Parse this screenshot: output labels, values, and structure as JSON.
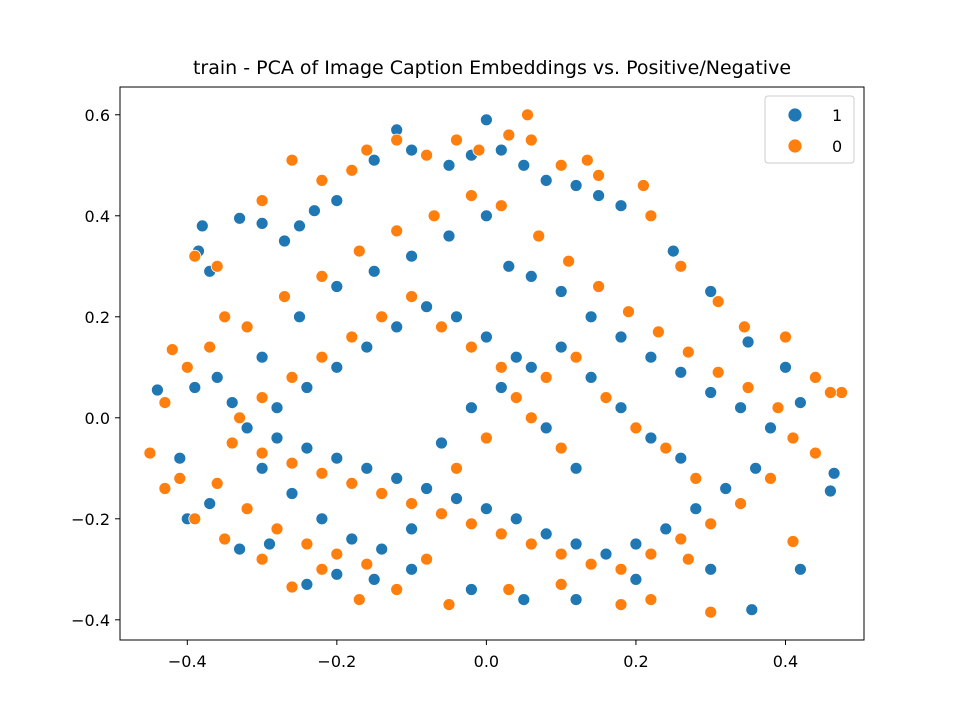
{
  "chart_data": {
    "type": "scatter",
    "title": "train - PCA of Image Caption Embeddings vs. Positive/Negative",
    "xlabel": "",
    "ylabel": "",
    "xlim": [
      -0.49,
      0.505
    ],
    "ylim": [
      -0.44,
      0.655
    ],
    "xticks": [
      -0.4,
      -0.2,
      0.0,
      0.2,
      0.4
    ],
    "xtick_labels": [
      "−0.4",
      "−0.2",
      "0.0",
      "0.2",
      "0.4"
    ],
    "yticks": [
      -0.4,
      -0.2,
      0.0,
      0.2,
      0.4,
      0.6
    ],
    "ytick_labels": [
      "−0.4",
      "−0.2",
      "0.0",
      "0.2",
      "0.4",
      "0.6"
    ],
    "grid": false,
    "legend_position": "top-right",
    "colors": {
      "1": "#1f77b4",
      "0": "#ff7f0e"
    },
    "series": [
      {
        "name": "1",
        "color": "#1f77b4",
        "points": [
          [
            -0.44,
            0.055
          ],
          [
            -0.4,
            -0.2
          ],
          [
            -0.38,
            0.38
          ],
          [
            -0.385,
            0.33
          ],
          [
            -0.37,
            0.29
          ],
          [
            -0.33,
            0.395
          ],
          [
            -0.3,
            0.385
          ],
          [
            -0.27,
            0.35
          ],
          [
            -0.25,
            0.38
          ],
          [
            -0.23,
            0.41
          ],
          [
            -0.2,
            0.43
          ],
          [
            -0.15,
            0.51
          ],
          [
            -0.12,
            0.57
          ],
          [
            -0.1,
            0.53
          ],
          [
            -0.05,
            0.5
          ],
          [
            -0.02,
            0.52
          ],
          [
            0.0,
            0.59
          ],
          [
            0.02,
            0.53
          ],
          [
            0.05,
            0.5
          ],
          [
            0.08,
            0.47
          ],
          [
            0.12,
            0.46
          ],
          [
            0.15,
            0.44
          ],
          [
            0.18,
            0.42
          ],
          [
            0.25,
            0.33
          ],
          [
            0.3,
            0.25
          ],
          [
            0.35,
            0.15
          ],
          [
            0.4,
            0.1
          ],
          [
            0.42,
            0.03
          ],
          [
            0.44,
            -0.07
          ],
          [
            0.465,
            -0.11
          ],
          [
            0.46,
            -0.145
          ],
          [
            0.42,
            -0.3
          ],
          [
            0.355,
            -0.38
          ],
          [
            0.3,
            -0.3
          ],
          [
            0.2,
            -0.32
          ],
          [
            0.12,
            -0.36
          ],
          [
            0.05,
            -0.36
          ],
          [
            -0.02,
            -0.34
          ],
          [
            -0.1,
            -0.3
          ],
          [
            -0.15,
            -0.32
          ],
          [
            -0.2,
            -0.31
          ],
          [
            -0.24,
            -0.33
          ],
          [
            -0.29,
            -0.25
          ],
          [
            -0.33,
            -0.26
          ],
          [
            -0.37,
            -0.17
          ],
          [
            -0.41,
            -0.08
          ],
          [
            -0.39,
            0.06
          ],
          [
            -0.36,
            0.08
          ],
          [
            -0.3,
            0.12
          ],
          [
            -0.25,
            0.2
          ],
          [
            -0.2,
            0.26
          ],
          [
            -0.15,
            0.29
          ],
          [
            -0.1,
            0.32
          ],
          [
            -0.05,
            0.36
          ],
          [
            0.0,
            0.4
          ],
          [
            0.03,
            0.3
          ],
          [
            0.06,
            0.28
          ],
          [
            0.1,
            0.25
          ],
          [
            0.14,
            0.2
          ],
          [
            0.18,
            0.16
          ],
          [
            0.22,
            0.12
          ],
          [
            0.26,
            0.09
          ],
          [
            0.3,
            0.05
          ],
          [
            0.34,
            0.02
          ],
          [
            0.38,
            -0.02
          ],
          [
            0.36,
            -0.1
          ],
          [
            0.32,
            -0.14
          ],
          [
            0.28,
            -0.18
          ],
          [
            0.24,
            -0.22
          ],
          [
            0.2,
            -0.25
          ],
          [
            0.16,
            -0.27
          ],
          [
            0.12,
            -0.25
          ],
          [
            0.08,
            -0.23
          ],
          [
            0.04,
            -0.2
          ],
          [
            0.0,
            -0.18
          ],
          [
            -0.04,
            -0.16
          ],
          [
            -0.08,
            -0.14
          ],
          [
            -0.12,
            -0.12
          ],
          [
            -0.16,
            -0.1
          ],
          [
            -0.2,
            -0.08
          ],
          [
            -0.24,
            -0.06
          ],
          [
            -0.28,
            -0.04
          ],
          [
            -0.32,
            -0.02
          ],
          [
            -0.34,
            0.03
          ],
          [
            -0.3,
            -0.1
          ],
          [
            -0.26,
            -0.15
          ],
          [
            -0.22,
            -0.2
          ],
          [
            -0.18,
            -0.24
          ],
          [
            -0.14,
            -0.26
          ],
          [
            -0.1,
            -0.22
          ],
          [
            -0.06,
            -0.05
          ],
          [
            -0.02,
            0.02
          ],
          [
            0.02,
            0.06
          ],
          [
            0.06,
            0.1
          ],
          [
            0.1,
            0.14
          ],
          [
            0.14,
            0.08
          ],
          [
            0.18,
            0.02
          ],
          [
            0.22,
            -0.04
          ],
          [
            0.26,
            -0.08
          ],
          [
            0.12,
            -0.1
          ],
          [
            0.08,
            -0.02
          ],
          [
            0.04,
            0.12
          ],
          [
            0.0,
            0.16
          ],
          [
            -0.04,
            0.2
          ],
          [
            -0.08,
            0.22
          ],
          [
            -0.12,
            0.18
          ],
          [
            -0.16,
            0.14
          ],
          [
            -0.2,
            0.1
          ],
          [
            -0.24,
            0.06
          ],
          [
            -0.28,
            0.02
          ]
        ]
      },
      {
        "name": "0",
        "color": "#ff7f0e",
        "points": [
          [
            -0.45,
            -0.07
          ],
          [
            -0.43,
            -0.14
          ],
          [
            -0.42,
            0.135
          ],
          [
            -0.39,
            0.32
          ],
          [
            -0.36,
            0.3
          ],
          [
            -0.35,
            0.2
          ],
          [
            -0.3,
            0.43
          ],
          [
            -0.26,
            0.51
          ],
          [
            -0.22,
            0.47
          ],
          [
            -0.18,
            0.49
          ],
          [
            -0.16,
            0.53
          ],
          [
            -0.12,
            0.55
          ],
          [
            -0.08,
            0.52
          ],
          [
            -0.04,
            0.55
          ],
          [
            -0.01,
            0.53
          ],
          [
            0.03,
            0.56
          ],
          [
            0.055,
            0.6
          ],
          [
            0.06,
            0.55
          ],
          [
            0.1,
            0.5
          ],
          [
            0.135,
            0.51
          ],
          [
            0.15,
            0.48
          ],
          [
            0.21,
            0.46
          ],
          [
            0.22,
            0.4
          ],
          [
            0.26,
            0.3
          ],
          [
            0.31,
            0.23
          ],
          [
            0.345,
            0.18
          ],
          [
            0.4,
            0.16
          ],
          [
            0.44,
            0.08
          ],
          [
            0.475,
            0.05
          ],
          [
            0.46,
            0.05
          ],
          [
            0.44,
            -0.07
          ],
          [
            0.41,
            -0.245
          ],
          [
            0.3,
            -0.385
          ],
          [
            0.27,
            -0.28
          ],
          [
            0.22,
            -0.36
          ],
          [
            0.18,
            -0.37
          ],
          [
            0.1,
            -0.33
          ],
          [
            0.03,
            -0.34
          ],
          [
            -0.05,
            -0.37
          ],
          [
            -0.12,
            -0.34
          ],
          [
            -0.17,
            -0.36
          ],
          [
            -0.22,
            -0.3
          ],
          [
            -0.26,
            -0.335
          ],
          [
            -0.3,
            -0.28
          ],
          [
            -0.35,
            -0.24
          ],
          [
            -0.39,
            -0.2
          ],
          [
            -0.41,
            -0.12
          ],
          [
            -0.43,
            0.03
          ],
          [
            -0.4,
            0.1
          ],
          [
            -0.37,
            0.14
          ],
          [
            -0.32,
            0.18
          ],
          [
            -0.27,
            0.24
          ],
          [
            -0.22,
            0.28
          ],
          [
            -0.17,
            0.33
          ],
          [
            -0.12,
            0.37
          ],
          [
            -0.07,
            0.4
          ],
          [
            -0.02,
            0.44
          ],
          [
            0.02,
            0.42
          ],
          [
            0.07,
            0.36
          ],
          [
            0.11,
            0.31
          ],
          [
            0.15,
            0.26
          ],
          [
            0.19,
            0.21
          ],
          [
            0.23,
            0.17
          ],
          [
            0.27,
            0.13
          ],
          [
            0.31,
            0.09
          ],
          [
            0.35,
            0.06
          ],
          [
            0.39,
            0.02
          ],
          [
            0.41,
            -0.04
          ],
          [
            0.38,
            -0.12
          ],
          [
            0.34,
            -0.17
          ],
          [
            0.3,
            -0.21
          ],
          [
            0.26,
            -0.24
          ],
          [
            0.22,
            -0.27
          ],
          [
            0.18,
            -0.3
          ],
          [
            0.14,
            -0.29
          ],
          [
            0.1,
            -0.27
          ],
          [
            0.06,
            -0.25
          ],
          [
            0.02,
            -0.23
          ],
          [
            -0.02,
            -0.21
          ],
          [
            -0.06,
            -0.19
          ],
          [
            -0.1,
            -0.17
          ],
          [
            -0.14,
            -0.15
          ],
          [
            -0.18,
            -0.13
          ],
          [
            -0.22,
            -0.11
          ],
          [
            -0.26,
            -0.09
          ],
          [
            -0.3,
            -0.07
          ],
          [
            -0.34,
            -0.05
          ],
          [
            -0.36,
            -0.13
          ],
          [
            -0.32,
            -0.18
          ],
          [
            -0.28,
            -0.22
          ],
          [
            -0.24,
            -0.25
          ],
          [
            -0.2,
            -0.27
          ],
          [
            -0.16,
            -0.29
          ],
          [
            -0.08,
            -0.28
          ],
          [
            -0.04,
            -0.1
          ],
          [
            0.0,
            -0.04
          ],
          [
            0.04,
            0.04
          ],
          [
            0.08,
            0.08
          ],
          [
            0.12,
            0.12
          ],
          [
            0.16,
            0.04
          ],
          [
            0.2,
            -0.02
          ],
          [
            0.24,
            -0.06
          ],
          [
            0.28,
            -0.12
          ],
          [
            0.1,
            -0.06
          ],
          [
            0.06,
            0.0
          ],
          [
            0.02,
            0.1
          ],
          [
            -0.02,
            0.14
          ],
          [
            -0.06,
            0.18
          ],
          [
            -0.1,
            0.24
          ],
          [
            -0.14,
            0.2
          ],
          [
            -0.18,
            0.16
          ],
          [
            -0.22,
            0.12
          ],
          [
            -0.26,
            0.08
          ],
          [
            -0.3,
            0.04
          ],
          [
            -0.33,
            0.0
          ]
        ]
      }
    ]
  }
}
